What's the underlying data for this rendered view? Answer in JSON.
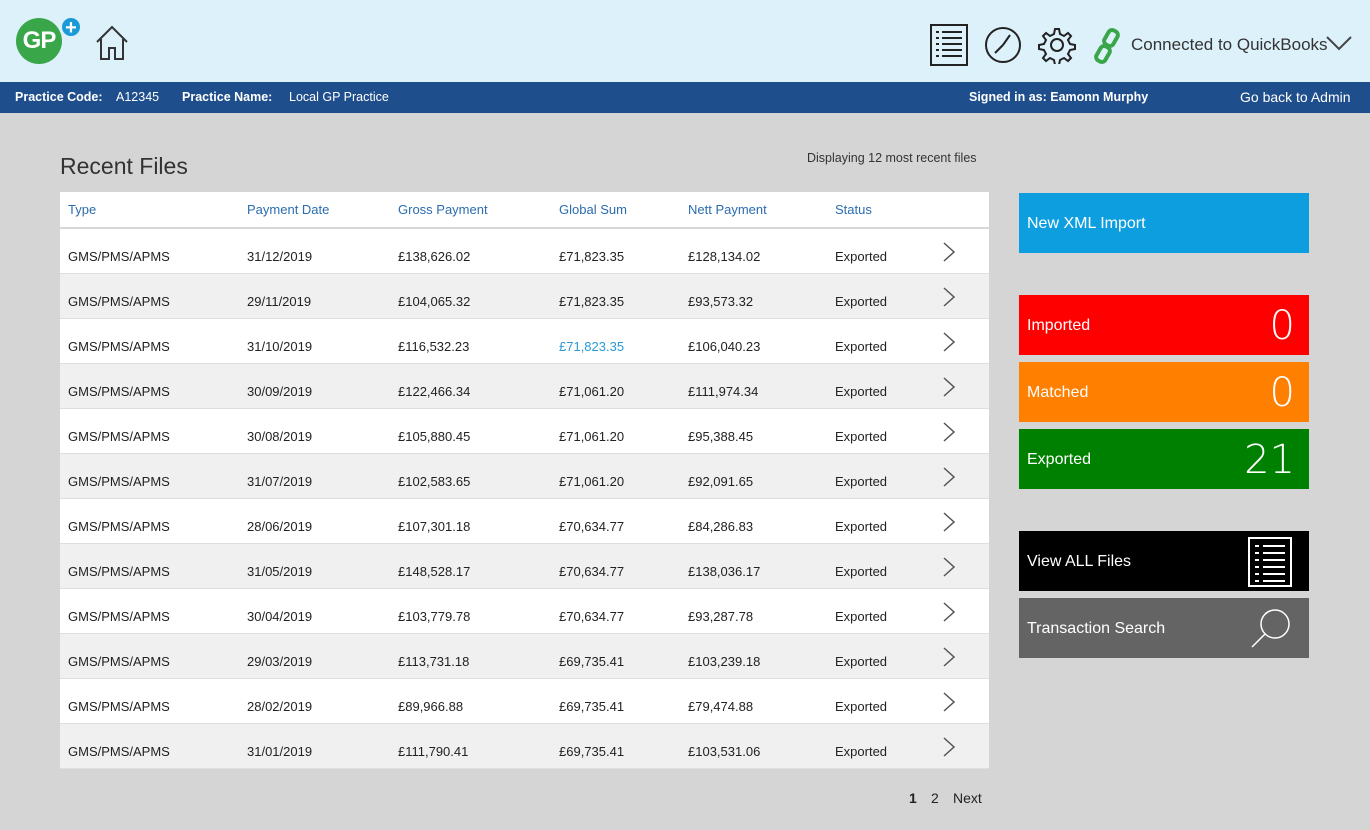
{
  "header": {
    "logo_text": "GP",
    "logo_plus": "+",
    "icons": [
      "home-icon",
      "list-icon",
      "clock-icon",
      "gear-icon",
      "link-icon"
    ],
    "connection_status": "Connected to QuickBooks"
  },
  "infobar": {
    "practice_code_label": "Practice Code:",
    "practice_code": "A12345",
    "practice_name_label": "Practice Name:",
    "practice_name": "Local GP Practice",
    "signed_in": "Signed in as: Eamonn Murphy",
    "back_link": "Go back to Admin"
  },
  "main": {
    "title": "Recent Files",
    "display_count": "Displaying 12 most recent files",
    "columns": [
      "Type",
      "Payment Date",
      "Gross Payment",
      "Global Sum",
      "Nett Payment",
      "Status"
    ],
    "rows": [
      [
        "GMS/PMS/APMS",
        "31/12/2019",
        "£138,626.02",
        "£71,823.35",
        "£128,134.02",
        "Exported"
      ],
      [
        "GMS/PMS/APMS",
        "29/11/2019",
        "£104,065.32",
        "£71,823.35",
        "£93,573.32",
        "Exported"
      ],
      [
        "GMS/PMS/APMS",
        "31/10/2019",
        "£116,532.23",
        "£71,823.35",
        "£106,040.23",
        "Exported"
      ],
      [
        "GMS/PMS/APMS",
        "30/09/2019",
        "£122,466.34",
        "£71,061.20",
        "£111,974.34",
        "Exported"
      ],
      [
        "GMS/PMS/APMS",
        "30/08/2019",
        "£105,880.45",
        "£71,061.20",
        "£95,388.45",
        "Exported"
      ],
      [
        "GMS/PMS/APMS",
        "31/07/2019",
        "£102,583.65",
        "£71,061.20",
        "£92,091.65",
        "Exported"
      ],
      [
        "GMS/PMS/APMS",
        "28/06/2019",
        "£107,301.18",
        "£70,634.77",
        "£84,286.83",
        "Exported"
      ],
      [
        "GMS/PMS/APMS",
        "31/05/2019",
        "£148,528.17",
        "£70,634.77",
        "£138,036.17",
        "Exported"
      ],
      [
        "GMS/PMS/APMS",
        "30/04/2019",
        "£103,779.78",
        "£70,634.77",
        "£93,287.78",
        "Exported"
      ],
      [
        "GMS/PMS/APMS",
        "29/03/2019",
        "£113,731.18",
        "£69,735.41",
        "£103,239.18",
        "Exported"
      ],
      [
        "GMS/PMS/APMS",
        "28/02/2019",
        "£89,966.88",
        "£69,735.41",
        "£79,474.88",
        "Exported"
      ],
      [
        "GMS/PMS/APMS",
        "31/01/2019",
        "£111,790.41",
        "£69,735.41",
        "£103,531.06",
        "Exported"
      ]
    ],
    "highlight_row": 2,
    "pagination": {
      "page1": "1",
      "page2": "2",
      "next": "Next"
    }
  },
  "side": {
    "new_import": {
      "label": "New XML Import",
      "color": "#0d9ee0"
    },
    "imported": {
      "label": "Imported",
      "count": "0",
      "color": "#ff0000"
    },
    "matched": {
      "label": "Matched",
      "count": "0",
      "color": "#ff7f00"
    },
    "exported": {
      "label": "Exported",
      "count": "21",
      "color": "#008000"
    },
    "view_all": {
      "label": "View ALL Files",
      "color": "#000000"
    },
    "search": {
      "label": "Transaction Search",
      "color": "#646464"
    }
  }
}
